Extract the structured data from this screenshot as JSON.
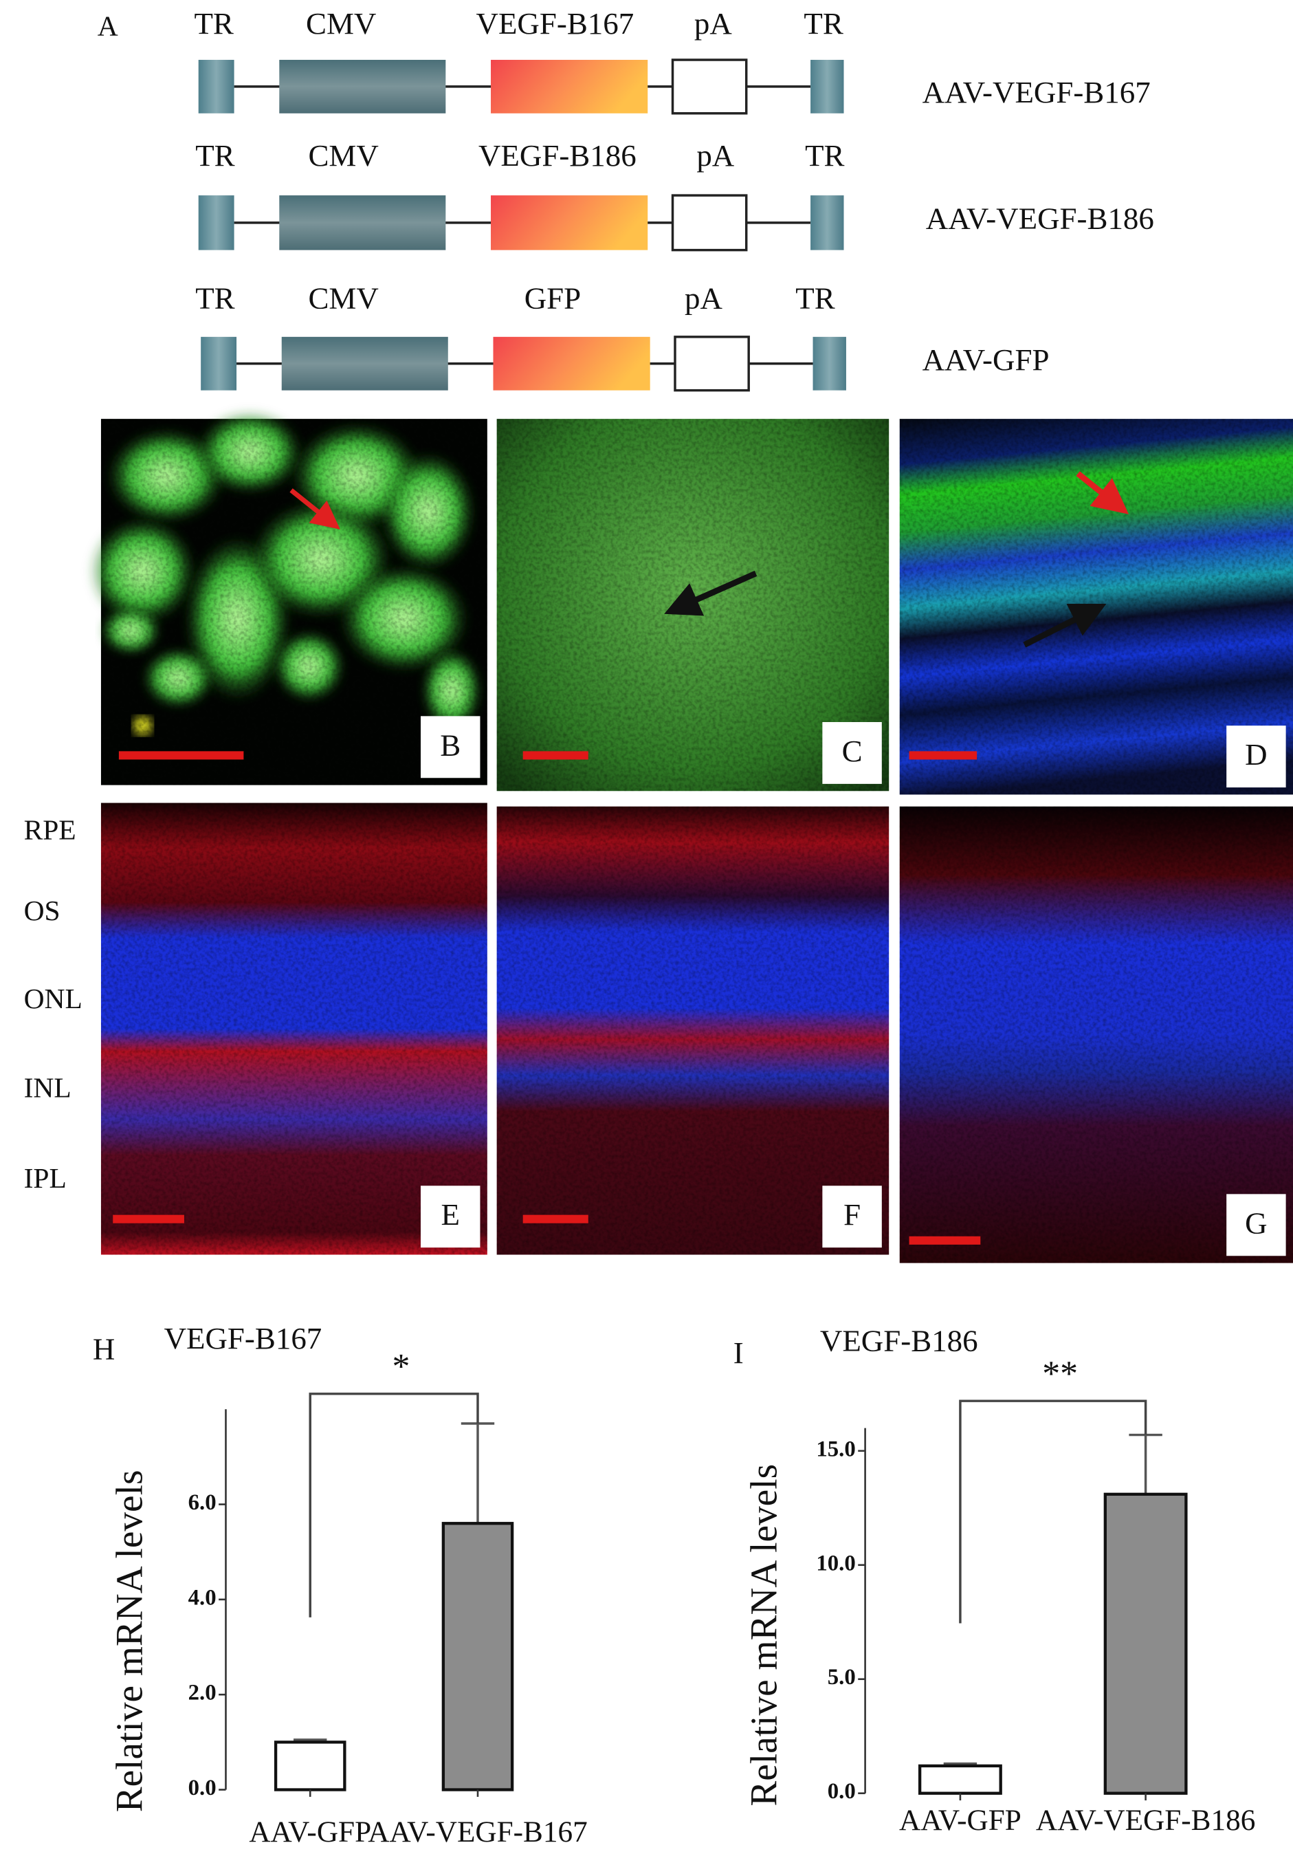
{
  "panel_a": {
    "letter": "A",
    "constructs": [
      {
        "elements": [
          "TR",
          "CMV",
          "VEGF-B167",
          "pA",
          "TR"
        ],
        "name": "AAV-VEGF-B167"
      },
      {
        "elements": [
          "TR",
          "CMV",
          "VEGF-B186",
          "pA",
          "TR"
        ],
        "name": "AAV-VEGF-B186"
      },
      {
        "elements": [
          "TR",
          "CMV",
          "GFP",
          "pA",
          "TR"
        ],
        "name": "AAV-GFP"
      }
    ]
  },
  "image_panels": [
    "B",
    "C",
    "D",
    "E",
    "F",
    "G"
  ],
  "layer_labels": [
    "RPE",
    "OS",
    "ONL",
    "INL",
    "IPL"
  ],
  "chart_data": [
    {
      "type": "bar",
      "letter": "H",
      "title": "VEGF-B167",
      "y_label": "Relative mRNA levels",
      "categories": [
        "AAV-GFP",
        "AAV-VEGF-B167"
      ],
      "values": [
        1.0,
        5.6
      ],
      "errors": [
        0.05,
        2.1
      ],
      "colors": [
        "#ffffff",
        "#8c8c8c"
      ],
      "ylim": [
        0,
        8
      ],
      "yticks": [
        {
          "value": 0,
          "label": "0.0"
        },
        {
          "value": 2,
          "label": "2.0"
        },
        {
          "value": 4,
          "label": "4.0"
        },
        {
          "value": 6,
          "label": "6.0"
        }
      ],
      "annotation": "*"
    },
    {
      "type": "bar",
      "letter": "I",
      "title": "VEGF-B186",
      "y_label": "Relative mRNA levels",
      "categories": [
        "AAV-GFP",
        "AAV-VEGF-B186"
      ],
      "values": [
        1.2,
        13.1
      ],
      "errors": [
        0.1,
        2.6
      ],
      "colors": [
        "#ffffff",
        "#8c8c8c"
      ],
      "ylim": [
        0,
        16
      ],
      "yticks": [
        {
          "value": 0,
          "label": "0.0"
        },
        {
          "value": 5,
          "label": "5.0"
        },
        {
          "value": 10,
          "label": "10.0"
        },
        {
          "value": 15,
          "label": "15.0"
        }
      ],
      "annotation": "**"
    }
  ]
}
